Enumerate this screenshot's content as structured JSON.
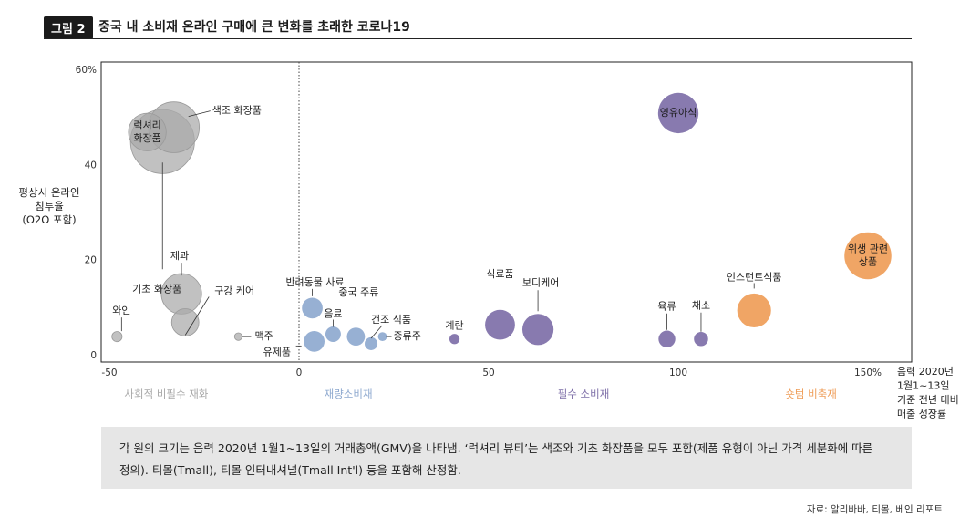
{
  "figure": {
    "badge": "그림 2",
    "title": "중국 내 소비재 온라인 구매에 큰 변화를 초래한 코로나19"
  },
  "chart_data": {
    "type": "scatter",
    "subtype": "bubble",
    "ylabel": [
      "평상시 온라인",
      "침투율",
      "(O2O 포함)"
    ],
    "xlabel": [
      "음력 2020년",
      "1월1~13일",
      "기준 전년 대비",
      "매출 성장률"
    ],
    "xlim": [
      -50,
      150
    ],
    "ylim": [
      0,
      60
    ],
    "x_ticks": [
      {
        "value": -50,
        "label": "-50"
      },
      {
        "value": 0,
        "label": "0"
      },
      {
        "value": 50,
        "label": "50"
      },
      {
        "value": 100,
        "label": "100"
      },
      {
        "value": 150,
        "label": "150%"
      }
    ],
    "y_ticks": [
      {
        "value": 0,
        "label": "0"
      },
      {
        "value": 20,
        "label": "20"
      },
      {
        "value": 40,
        "label": "40"
      },
      {
        "value": 60,
        "label": "60%"
      }
    ],
    "reference_line_x": 0,
    "groups": [
      {
        "name": "사회적 비필수 재화",
        "color": "#a9a9a9",
        "x_center": -35
      },
      {
        "name": "재량소비재",
        "color": "#8ea9cf",
        "x_center": 13
      },
      {
        "name": "필수 소비재",
        "color": "#7e6fa8",
        "x_center": 75
      },
      {
        "name": "숏텀 비축재",
        "color": "#ef9d58",
        "x_center": 135
      }
    ],
    "points": [
      {
        "label": "기초 화장품",
        "x": -36,
        "y": 45,
        "size": 46,
        "group": 0
      },
      {
        "label": "색조 화장품",
        "x": -33,
        "y": 48,
        "size": 36,
        "group": 0
      },
      {
        "label": "럭셔리\n화장품",
        "x": -40,
        "y": 47,
        "size": 26,
        "group": 0
      },
      {
        "label": "제과",
        "x": -31,
        "y": 13,
        "size": 28,
        "group": 0
      },
      {
        "label": "구강 케어",
        "x": -30,
        "y": 7,
        "size": 18,
        "group": 0
      },
      {
        "label": "와인",
        "x": -48,
        "y": 4,
        "size": 5,
        "group": 0
      },
      {
        "label": "맥주",
        "x": -16,
        "y": 4,
        "size": 3,
        "group": 0
      },
      {
        "label": "반려동물 사료",
        "x": 3.5,
        "y": 10,
        "size": 13,
        "group": 1
      },
      {
        "label": "유제품",
        "x": 4,
        "y": 3,
        "size": 13,
        "group": 1
      },
      {
        "label": "음료",
        "x": 9,
        "y": 4.5,
        "size": 9,
        "group": 1
      },
      {
        "label": "중국 주류",
        "x": 15,
        "y": 4,
        "size": 11,
        "group": 1
      },
      {
        "label": "건조 식품",
        "x": 19,
        "y": 2.5,
        "size": 7,
        "group": 1
      },
      {
        "label": "증류주",
        "x": 22,
        "y": 4,
        "size": 4,
        "group": 1
      },
      {
        "label": "계란",
        "x": 41,
        "y": 3.5,
        "size": 5,
        "group": 2
      },
      {
        "label": "식료품",
        "x": 53,
        "y": 6.5,
        "size": 20,
        "group": 2
      },
      {
        "label": "보디케어",
        "x": 63,
        "y": 5.5,
        "size": 21,
        "group": 2
      },
      {
        "label": "영유아식",
        "x": 100,
        "y": 51,
        "size": 28,
        "group": 2
      },
      {
        "label": "육류",
        "x": 97,
        "y": 3.5,
        "size": 10,
        "group": 2
      },
      {
        "label": "채소",
        "x": 106,
        "y": 3.5,
        "size": 8,
        "group": 2
      },
      {
        "label": "인스턴트식품",
        "x": 120,
        "y": 9.5,
        "size": 23,
        "group": 3
      },
      {
        "label": "위생 관련\n상품",
        "x": 150,
        "y": 21,
        "size": 33,
        "group": 3
      }
    ]
  },
  "note": {
    "line1": "각 원의 크기는 음력 2020년 1월1~13일의 거래총액(GMV)을 나타냄. ‘럭셔리 뷰티’는 색조와 기초 화장품을 모두 포함(제품 유형이 아닌 가격 세분화에 따른",
    "line2": "정의). 티몰(Tmall), 티몰 인터내셔널(Tmall Int'l) 등을 포함해 산정함."
  },
  "source": "자료: 알리바바, 티몰, 베인 리포트"
}
